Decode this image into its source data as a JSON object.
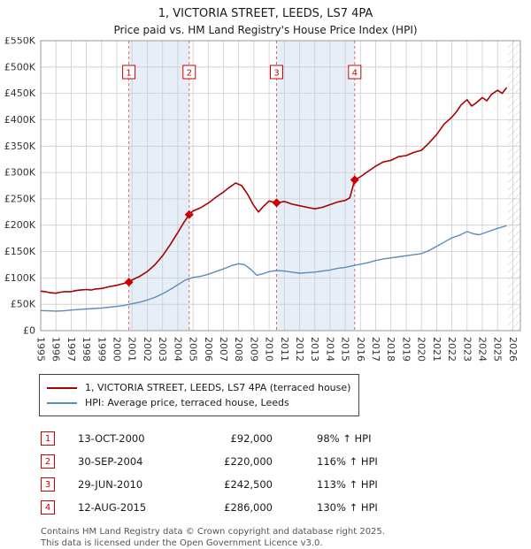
{
  "chart_data": {
    "type": "line",
    "title": "1, VICTORIA STREET, LEEDS, LS7 4PA",
    "subtitle": "Price paid vs. HM Land Registry's House Price Index (HPI)",
    "xlim": [
      1995,
      2026.5
    ],
    "ylim": [
      0,
      550000
    ],
    "ytick_step": 50000,
    "ytick_labels": [
      "£0",
      "£50K",
      "£100K",
      "£150K",
      "£200K",
      "£250K",
      "£300K",
      "£350K",
      "£400K",
      "£450K",
      "£500K",
      "£550K"
    ],
    "x_ticks": [
      "1995",
      "1996",
      "1997",
      "1998",
      "1999",
      "2000",
      "2001",
      "2002",
      "2003",
      "2004",
      "2005",
      "2006",
      "2007",
      "2008",
      "2009",
      "2010",
      "2011",
      "2012",
      "2013",
      "2014",
      "2015",
      "2016",
      "2017",
      "2018",
      "2019",
      "2020",
      "2021",
      "2022",
      "2023",
      "2024",
      "2025",
      "2026"
    ],
    "grid": true,
    "legend_position": "below",
    "colors": {
      "band": "#e6eef8",
      "grid": "#cccccc",
      "border": "#999999",
      "sale_line": "#e06666",
      "marker": "#cc0000"
    },
    "shaded_bands": [
      [
        2000.79,
        2004.75
      ],
      [
        2010.49,
        2015.62
      ]
    ],
    "hatch_from": 2025.7,
    "series": [
      {
        "name": "1, VICTORIA STREET, LEEDS, LS7 4PA (terraced house)",
        "color": "#aa0000",
        "width": 1.6,
        "x": [
          1995,
          1995.3,
          1995.6,
          1996,
          1996.3,
          1996.6,
          1997,
          1997.3,
          1997.6,
          1998,
          1998.3,
          1998.6,
          1999,
          1999.3,
          1999.6,
          2000,
          2000.4,
          2000.79,
          2001,
          2001.5,
          2002,
          2002.5,
          2003,
          2003.5,
          2004,
          2004.4,
          2004.75,
          2005,
          2005.5,
          2006,
          2006.5,
          2007,
          2007.4,
          2007.8,
          2008.2,
          2008.6,
          2009,
          2009.3,
          2009.6,
          2010,
          2010.49,
          2011,
          2011.5,
          2012,
          2012.5,
          2013,
          2013.5,
          2014,
          2014.5,
          2015,
          2015.3,
          2015.62,
          2016,
          2016.5,
          2017,
          2017.5,
          2018,
          2018.5,
          2019,
          2019.5,
          2020,
          2020.5,
          2021,
          2021.5,
          2022,
          2022.3,
          2022.6,
          2023,
          2023.3,
          2023.6,
          2024,
          2024.3,
          2024.6,
          2025,
          2025.3,
          2025.6
        ],
        "y": [
          75000,
          74000,
          72000,
          71000,
          73000,
          74000,
          74000,
          76000,
          77000,
          78000,
          77000,
          79000,
          80000,
          82000,
          84000,
          86000,
          89000,
          92000,
          96000,
          103000,
          112000,
          125000,
          142000,
          163000,
          186000,
          205000,
          220000,
          227000,
          233000,
          242000,
          253000,
          263000,
          272000,
          280000,
          275000,
          258000,
          237000,
          225000,
          235000,
          246000,
          242500,
          245000,
          240000,
          237000,
          234000,
          231000,
          234000,
          239000,
          244000,
          247000,
          252000,
          286000,
          292000,
          302000,
          312000,
          320000,
          323000,
          330000,
          332000,
          338000,
          342000,
          356000,
          372000,
          392000,
          405000,
          415000,
          428000,
          438000,
          426000,
          432000,
          442000,
          436000,
          448000,
          456000,
          450000,
          461000
        ]
      },
      {
        "name": "HPI: Average price, terraced house, Leeds",
        "color": "#5b8cbe",
        "width": 1.4,
        "x": [
          1995,
          1995.5,
          1996,
          1996.5,
          1997,
          1997.5,
          1998,
          1998.5,
          1999,
          1999.5,
          2000,
          2000.5,
          2001,
          2001.5,
          2002,
          2002.5,
          2003,
          2003.5,
          2004,
          2004.5,
          2005,
          2005.5,
          2006,
          2006.5,
          2007,
          2007.5,
          2008,
          2008.4,
          2008.8,
          2009.2,
          2009.6,
          2010,
          2010.5,
          2011,
          2011.5,
          2012,
          2012.5,
          2013,
          2013.5,
          2014,
          2014.5,
          2015,
          2015.5,
          2016,
          2016.5,
          2017,
          2017.5,
          2018,
          2018.5,
          2019,
          2019.5,
          2020,
          2020.5,
          2021,
          2021.5,
          2022,
          2022.5,
          2023,
          2023.4,
          2023.8,
          2024.2,
          2024.6,
          2025,
          2025.6
        ],
        "y": [
          38000,
          37500,
          37000,
          37500,
          39000,
          40000,
          41000,
          42000,
          43000,
          44500,
          46000,
          48000,
          51000,
          54000,
          58000,
          63000,
          70000,
          78000,
          87000,
          96000,
          101000,
          103000,
          107000,
          112000,
          117000,
          123000,
          127000,
          125000,
          116000,
          105000,
          108000,
          112000,
          114000,
          113000,
          111000,
          109000,
          110000,
          111000,
          113000,
          115000,
          118000,
          120000,
          123000,
          126000,
          129000,
          133000,
          136000,
          138000,
          140000,
          142000,
          144000,
          146000,
          152000,
          160000,
          168000,
          176000,
          181000,
          188000,
          184000,
          182000,
          186000,
          190000,
          194000,
          199000
        ]
      }
    ],
    "sales": [
      {
        "num": 1,
        "x": 2000.79,
        "price_value": 92000,
        "date": "13-OCT-2000",
        "price": "£92,000",
        "vs_hpi": "98% ↑ HPI"
      },
      {
        "num": 2,
        "x": 2004.75,
        "price_value": 220000,
        "date": "30-SEP-2004",
        "price": "£220,000",
        "vs_hpi": "116% ↑ HPI"
      },
      {
        "num": 3,
        "x": 2010.49,
        "price_value": 242500,
        "date": "29-JUN-2010",
        "price": "£242,500",
        "vs_hpi": "113% ↑ HPI"
      },
      {
        "num": 4,
        "x": 2015.62,
        "price_value": 286000,
        "date": "12-AUG-2015",
        "price": "£286,000",
        "vs_hpi": "130% ↑ HPI"
      }
    ]
  },
  "footer": [
    "Contains HM Land Registry data © Crown copyright and database right 2025.",
    "This data is licensed under the Open Government Licence v3.0."
  ]
}
